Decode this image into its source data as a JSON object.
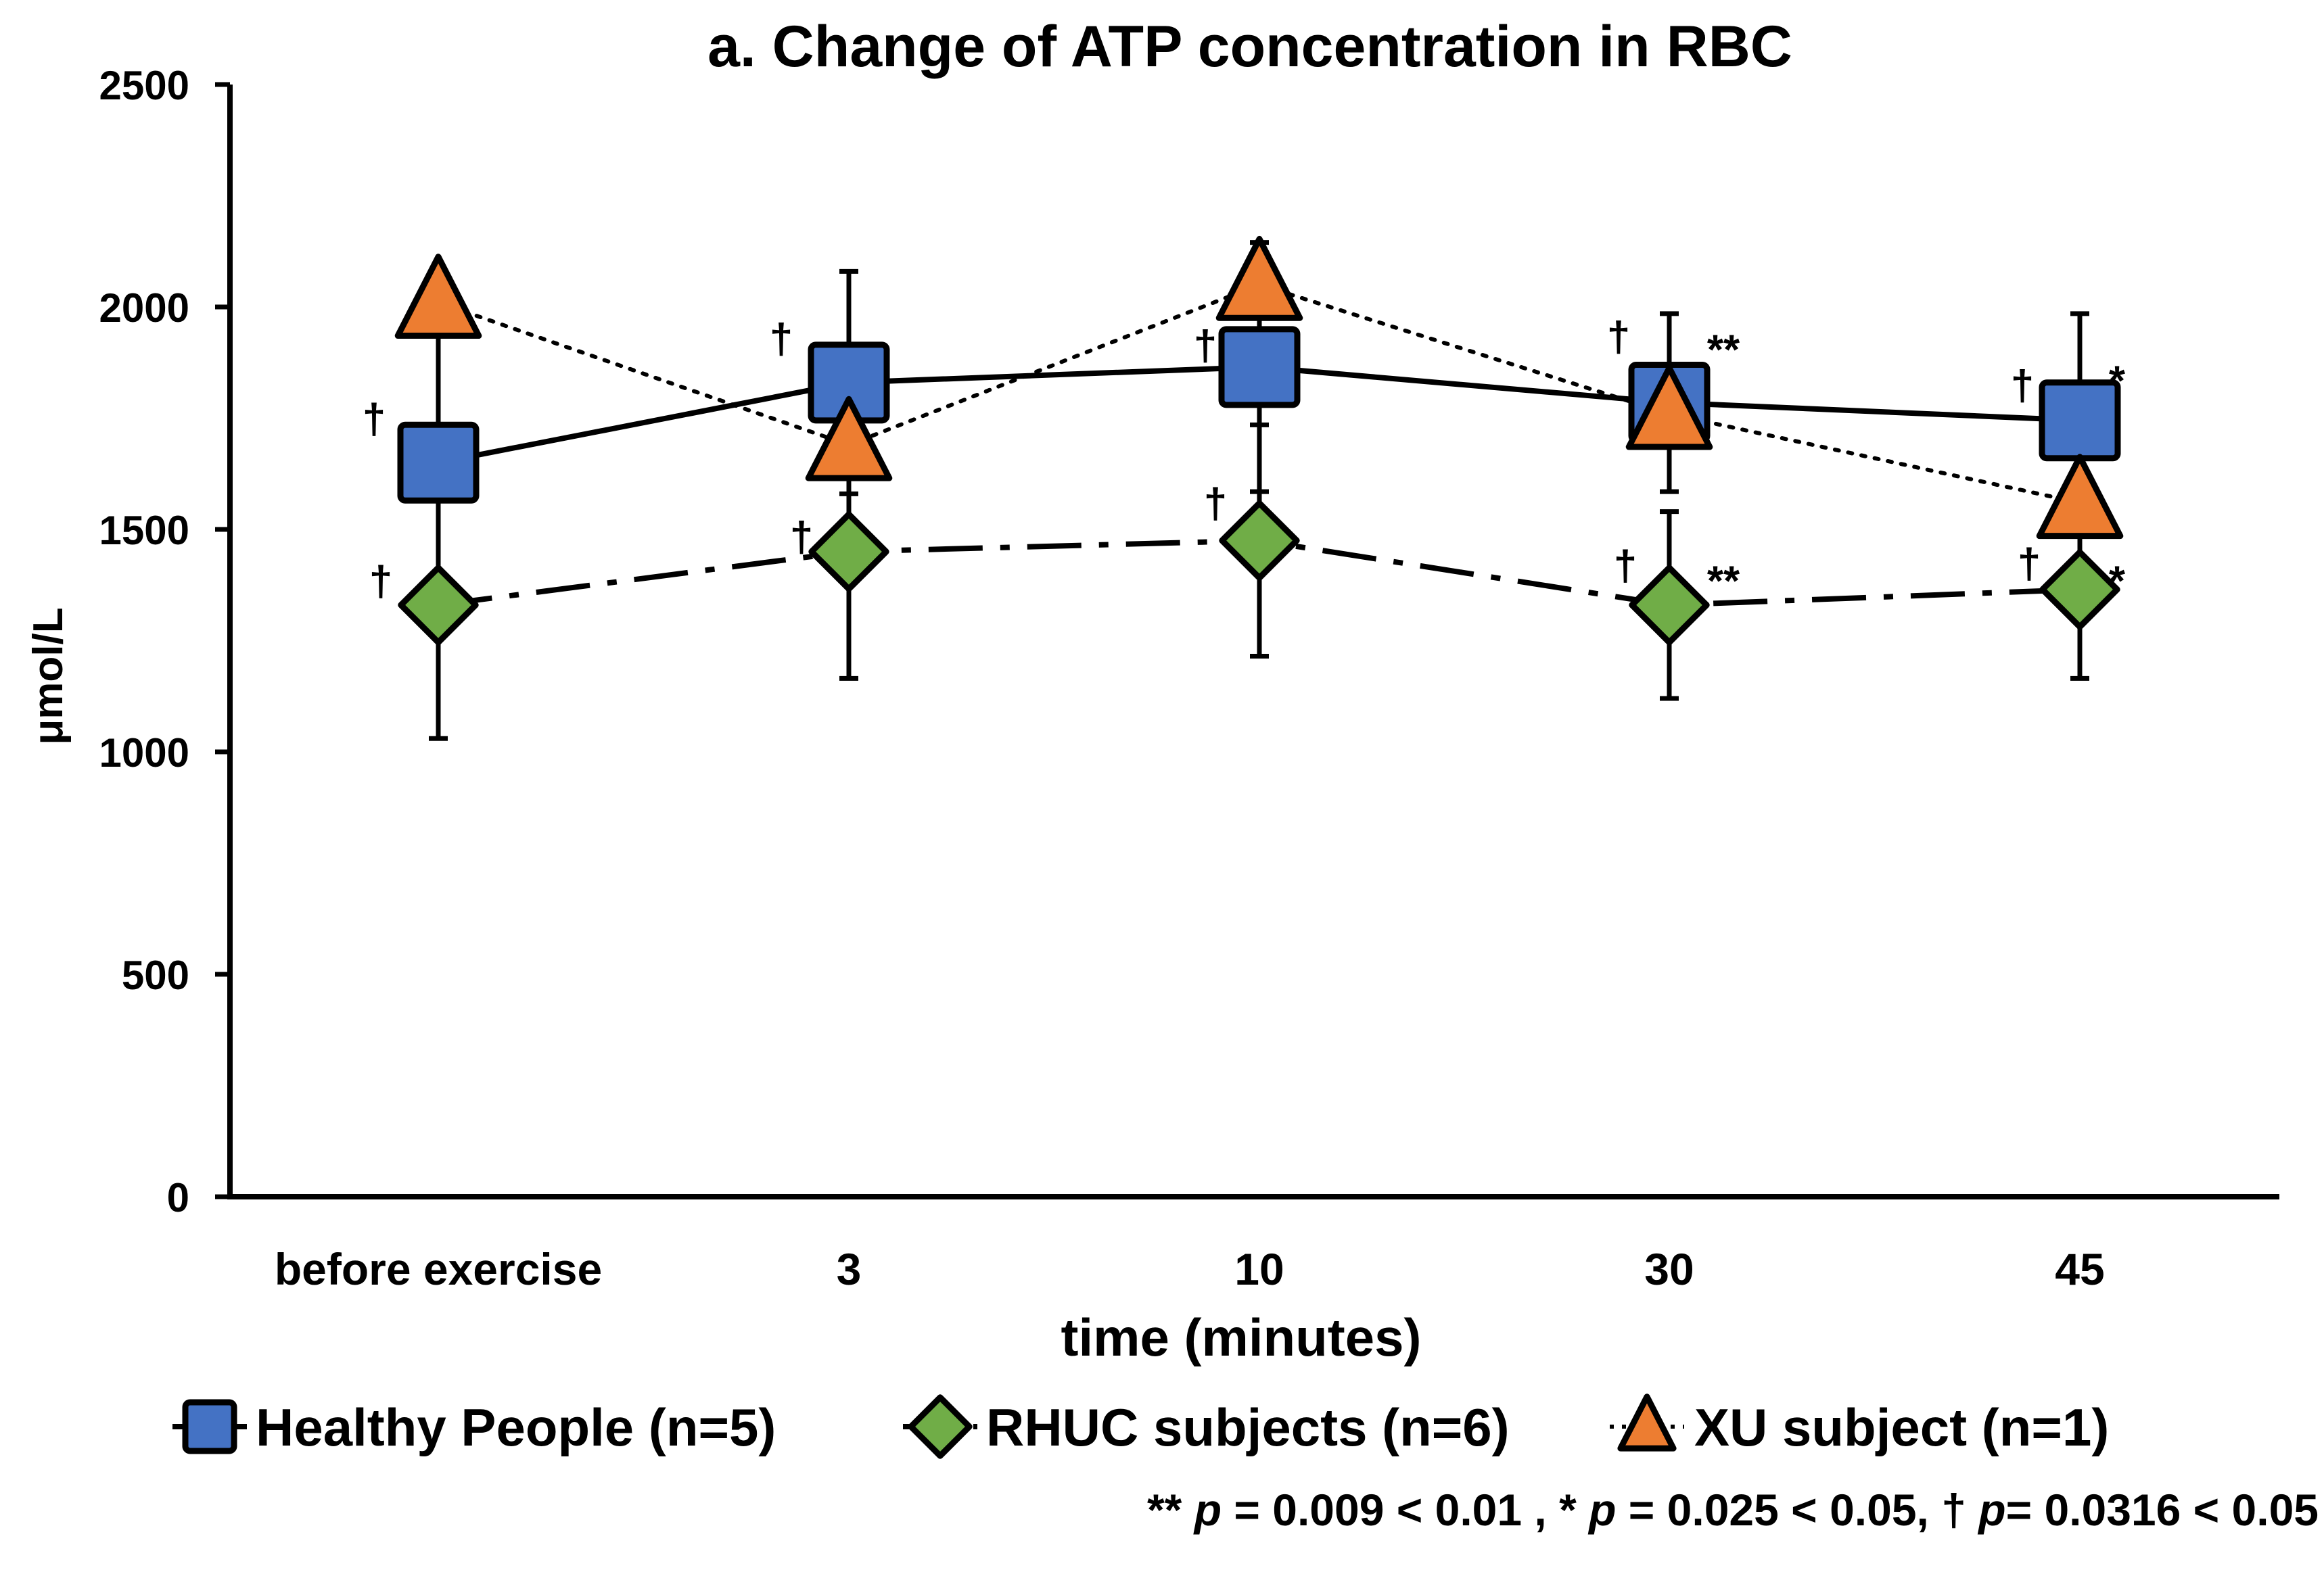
{
  "chart_data": {
    "type": "line",
    "title": "a. Change of ATP concentration in RBC",
    "xlabel": "time (minutes)",
    "ylabel": "μmol/L",
    "categories": [
      "before exercise",
      "3",
      "10",
      "30",
      "45"
    ],
    "ylim": [
      0,
      2500
    ],
    "yticks": [
      "0",
      "500",
      "1000",
      "1500",
      "2000",
      "2500"
    ],
    "series": [
      {
        "name": "Healthy People (n=5)",
        "marker": "square",
        "color": "#4472C4",
        "line": "solid",
        "values": [
          1650,
          1830,
          1865,
          1785,
          1745
        ],
        "err_plus": [
          380,
          250,
          280,
          200,
          240
        ],
        "err_minus": [
          380,
          250,
          280,
          200,
          240
        ]
      },
      {
        "name": "RHUC subjects (n=6)",
        "marker": "diamond",
        "color": "#70AD47",
        "line": "dashdot",
        "values": [
          1330,
          1450,
          1475,
          1330,
          1365
        ],
        "err_plus": [
          300,
          285,
          260,
          210,
          200
        ],
        "err_minus": [
          300,
          285,
          260,
          210,
          200
        ]
      },
      {
        "name": "XU subject (n=1)",
        "marker": "triangle",
        "color": "#ED7D31",
        "line": "dotted",
        "values": [
          2010,
          1690,
          2050,
          1760,
          1560
        ]
      }
    ],
    "annotations": [
      {
        "text": "†",
        "category": 0,
        "value": 1750,
        "dx": -95
      },
      {
        "text": "†",
        "category": 0,
        "value": 1385,
        "dx": -85
      },
      {
        "text": "†",
        "category": 1,
        "value": 1930,
        "dx": -100
      },
      {
        "text": "†",
        "category": 1,
        "value": 1485,
        "dx": -70
      },
      {
        "text": "†",
        "category": 2,
        "value": 1915,
        "dx": -80
      },
      {
        "text": "†",
        "category": 2,
        "value": 1560,
        "dx": -65
      },
      {
        "text": "†",
        "category": 3,
        "value": 1935,
        "dx": -75
      },
      {
        "text": "**",
        "category": 3,
        "value": 1905,
        "dx": 80
      },
      {
        "text": "†",
        "category": 3,
        "value": 1420,
        "dx": -65
      },
      {
        "text": "**",
        "category": 3,
        "value": 1385,
        "dx": 80
      },
      {
        "text": "†",
        "category": 4,
        "value": 1825,
        "dx": -85
      },
      {
        "text": "*",
        "category": 4,
        "value": 1835,
        "dx": 55
      },
      {
        "text": "†",
        "category": 4,
        "value": 1425,
        "dx": -75
      },
      {
        "text": "*",
        "category": 4,
        "value": 1385,
        "dx": 55
      }
    ]
  },
  "footnote": {
    "part1": "** ",
    "p1": "p",
    "part2": " = 0.009 < 0.01 , * ",
    "p2": "p",
    "part3": " = 0.025 < 0.05, † ",
    "p3": "p",
    "part4": "= 0.0316 < 0.05"
  }
}
